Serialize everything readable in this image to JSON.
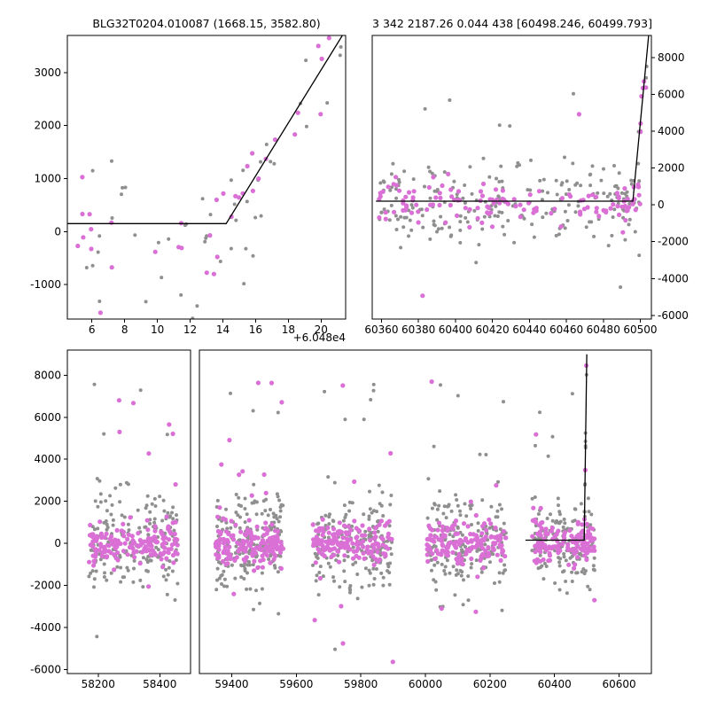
{
  "figure": {
    "background": "#ffffff",
    "colors": {
      "gray_points": "#8f8f8f",
      "magenta_points": "#da70d6",
      "model_line": "#000000",
      "axis": "#000000",
      "text": "#000000"
    },
    "marker_radius": {
      "gray": 2.0,
      "magenta": 2.6
    }
  },
  "chart_data": [
    {
      "name": "zoom-detail",
      "type": "scatter",
      "title": "BLG32T0204.010087 (1668.15, 3582.80)",
      "x_offset_label": "+6.048e4",
      "xlim": [
        4.5,
        21.5
      ],
      "ylim": [
        -1650,
        3700
      ],
      "xticks": [
        6,
        8,
        10,
        12,
        14,
        16,
        18,
        20
      ],
      "yticks": [
        -1000,
        0,
        1000,
        2000,
        3000
      ],
      "yaxis_side": "left",
      "model_line": [
        [
          4.5,
          150
        ],
        [
          14.2,
          150
        ],
        [
          21.3,
          3700
        ]
      ],
      "clusters": [
        {
          "x0": 4.8,
          "x1": 16.6,
          "n_gray": 36,
          "n_magenta": 24,
          "sigma_gray": 720,
          "sigma_magenta": 540,
          "outlier_frac_gray": 0.1,
          "outlier_frac_magenta": 0.1,
          "outlier_max": 2900,
          "seed": 101
        },
        {
          "x0": 14.4,
          "x1": 21.3,
          "n_gray": 16,
          "n_magenta": 13,
          "sigma_gray": 430,
          "sigma_magenta": 430,
          "on_line": true,
          "seed": 102
        }
      ]
    },
    {
      "name": "zoom-season",
      "type": "scatter",
      "title": "3 342 2187.26 0.044 438 [60498.246, 60499.793]",
      "xlim": [
        60355,
        60506
      ],
      "ylim": [
        -6200,
        9200
      ],
      "xticks": [
        60360,
        60380,
        60400,
        60420,
        60440,
        60460,
        60480,
        60500
      ],
      "yticks": [
        -6000,
        -4000,
        -2000,
        0,
        2000,
        4000,
        6000,
        8000
      ],
      "yaxis_side": "right",
      "model_line": [
        [
          60357,
          200
        ],
        [
          60496,
          200
        ],
        [
          60504.5,
          9200
        ]
      ],
      "clusters": [
        {
          "x0": 60358,
          "x1": 60500,
          "n_gray": 215,
          "n_magenta": 135,
          "sigma_gray": 1150,
          "sigma_magenta": 520,
          "outlier_frac_gray": 0.1,
          "outlier_frac_magenta": 0.06,
          "outlier_max": 7800,
          "seed": 201
        },
        {
          "x0": 60490,
          "x1": 60504,
          "n_gray": 15,
          "n_magenta": 10,
          "sigma_gray": 800,
          "sigma_magenta": 800,
          "on_line": true,
          "seed": 202
        }
      ]
    },
    {
      "name": "full-lightcurve-left",
      "type": "scatter",
      "xlim": [
        58100,
        58500
      ],
      "ylim": [
        -6200,
        9200
      ],
      "xticks": [
        58200,
        58400
      ],
      "yticks": [
        -6000,
        -4000,
        -2000,
        0,
        2000,
        4000,
        6000,
        8000
      ],
      "yaxis_side": "left",
      "clusters": [
        {
          "x0": 58170,
          "x1": 58460,
          "n_gray": 190,
          "n_magenta": 175,
          "sigma_gray": 1150,
          "sigma_magenta": 480,
          "outlier_frac_gray": 0.085,
          "outlier_frac_magenta": 0.05,
          "outlier_max": 7800,
          "seed": 301
        }
      ]
    },
    {
      "name": "full-lightcurve-right",
      "type": "scatter",
      "xlim": [
        59300,
        60700
      ],
      "ylim": [
        -6200,
        9200
      ],
      "xticks": [
        59400,
        59600,
        59800,
        60000,
        60200,
        60400,
        60600
      ],
      "yaxis_side": "none",
      "model_line": [
        [
          60310,
          150
        ],
        [
          60492,
          150
        ],
        [
          60500,
          9000
        ]
      ],
      "clusters": [
        {
          "x0": 59350,
          "x1": 59560,
          "n_gray": 200,
          "n_magenta": 185,
          "sigma_gray": 1150,
          "sigma_magenta": 480,
          "outlier_frac_gray": 0.085,
          "outlier_frac_magenta": 0.05,
          "outlier_max": 7800,
          "seed": 401
        },
        {
          "x0": 59650,
          "x1": 59900,
          "n_gray": 190,
          "n_magenta": 165,
          "sigma_gray": 1150,
          "sigma_magenta": 500,
          "outlier_frac_gray": 0.09,
          "outlier_frac_magenta": 0.05,
          "outlier_max": 7800,
          "seed": 402
        },
        {
          "x0": 60005,
          "x1": 60250,
          "n_gray": 190,
          "n_magenta": 165,
          "sigma_gray": 1100,
          "sigma_magenta": 480,
          "outlier_frac_gray": 0.08,
          "outlier_frac_magenta": 0.05,
          "outlier_max": 7800,
          "seed": 403
        },
        {
          "x0": 60330,
          "x1": 60525,
          "n_gray": 160,
          "n_magenta": 130,
          "sigma_gray": 1050,
          "sigma_magenta": 480,
          "outlier_frac_gray": 0.08,
          "outlier_frac_magenta": 0.05,
          "outlier_max": 7800,
          "seed": 404
        },
        {
          "x0": 60488,
          "x1": 60503,
          "n_gray": 10,
          "n_magenta": 8,
          "sigma_gray": 700,
          "sigma_magenta": 700,
          "on_line": true,
          "seed": 405
        }
      ]
    }
  ]
}
